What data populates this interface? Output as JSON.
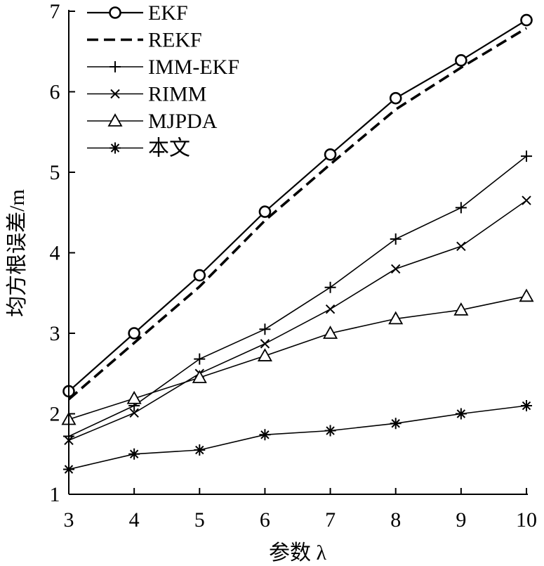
{
  "chart_data": {
    "type": "line",
    "xlabel": "参数 λ",
    "ylabel": "均方根误差/m",
    "xlim": [
      3,
      10
    ],
    "ylim": [
      1,
      7
    ],
    "xticks": [
      3,
      4,
      5,
      6,
      7,
      8,
      9,
      10
    ],
    "yticks": [
      1,
      2,
      3,
      4,
      5,
      6,
      7
    ],
    "grid": false,
    "legend_position": "top-left",
    "x": [
      3,
      4,
      5,
      6,
      7,
      8,
      9,
      10
    ],
    "series": [
      {
        "name": "EKF",
        "marker": "circle",
        "line": "solid",
        "values": [
          2.28,
          3.0,
          3.72,
          4.51,
          5.22,
          5.92,
          6.39,
          6.89
        ]
      },
      {
        "name": "REKF",
        "marker": "none",
        "line": "dashed",
        "values": [
          2.18,
          2.88,
          3.58,
          4.4,
          5.1,
          5.78,
          6.3,
          6.79
        ]
      },
      {
        "name": "IMM-EKF",
        "marker": "plus",
        "line": "solid",
        "values": [
          1.72,
          2.1,
          2.68,
          3.05,
          3.57,
          4.17,
          4.56,
          5.2
        ]
      },
      {
        "name": "RIMM",
        "marker": "x",
        "line": "solid",
        "values": [
          1.67,
          2.01,
          2.5,
          2.87,
          3.3,
          3.8,
          4.08,
          4.65
        ]
      },
      {
        "name": "MJPDA",
        "marker": "triangle",
        "line": "solid",
        "values": [
          1.93,
          2.19,
          2.45,
          2.72,
          3.0,
          3.18,
          3.29,
          3.46
        ]
      },
      {
        "name": "本文",
        "marker": "asterisk",
        "line": "solid",
        "values": [
          1.31,
          1.5,
          1.55,
          1.74,
          1.79,
          1.88,
          2.0,
          2.1
        ]
      }
    ]
  }
}
